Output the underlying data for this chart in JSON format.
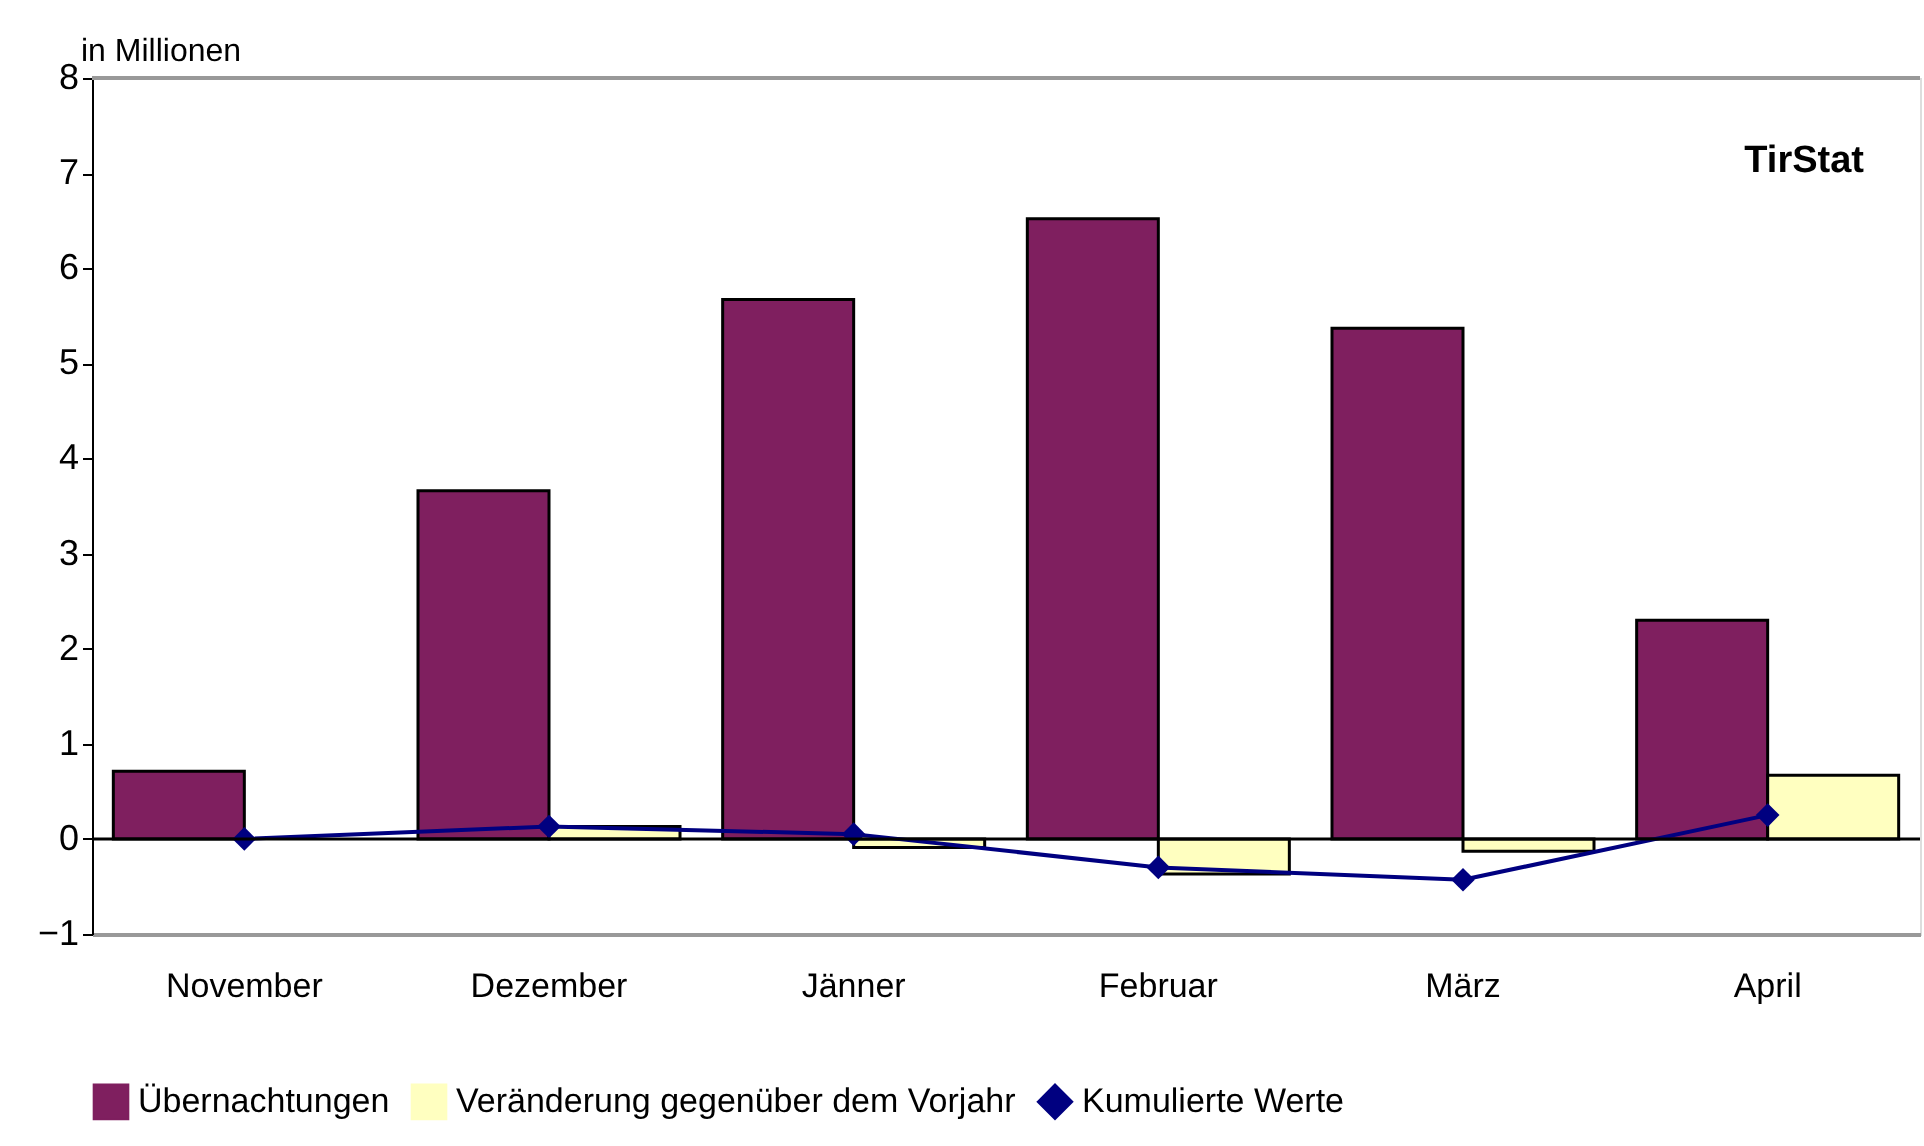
{
  "chart_data": {
    "type": "bar",
    "ylabel": "in Millionen",
    "categories": [
      "November",
      "Dezember",
      "Jänner",
      "Februar",
      "März",
      "April"
    ],
    "series": [
      {
        "name": "Übernachtungen",
        "color": "#7f1f5f",
        "values": [
          0.71,
          3.66,
          5.67,
          6.52,
          5.37,
          2.3
        ]
      },
      {
        "name": "Veränderung gegenüber dem Vorjahr",
        "color": "#ffffc0",
        "values": [
          null,
          0.13,
          -0.09,
          -0.37,
          -0.13,
          0.67
        ]
      },
      {
        "name": "Kumulierte Werte",
        "type": "line",
        "color": "#000080",
        "values": [
          0,
          0.13,
          0.05,
          -0.3,
          -0.43,
          0.25
        ],
        "marker": "diamond",
        "line_style": "solid"
      }
    ],
    "ylim": [
      -1,
      8
    ],
    "yticks": [
      -1,
      0,
      1,
      2,
      3,
      4,
      5,
      6,
      7,
      8
    ],
    "ref_lines": [
      {
        "axis": "y",
        "value": 0,
        "color": "#000000"
      }
    ],
    "annotations": [
      "TirStat"
    ],
    "grid": false,
    "legend": "bottom"
  }
}
